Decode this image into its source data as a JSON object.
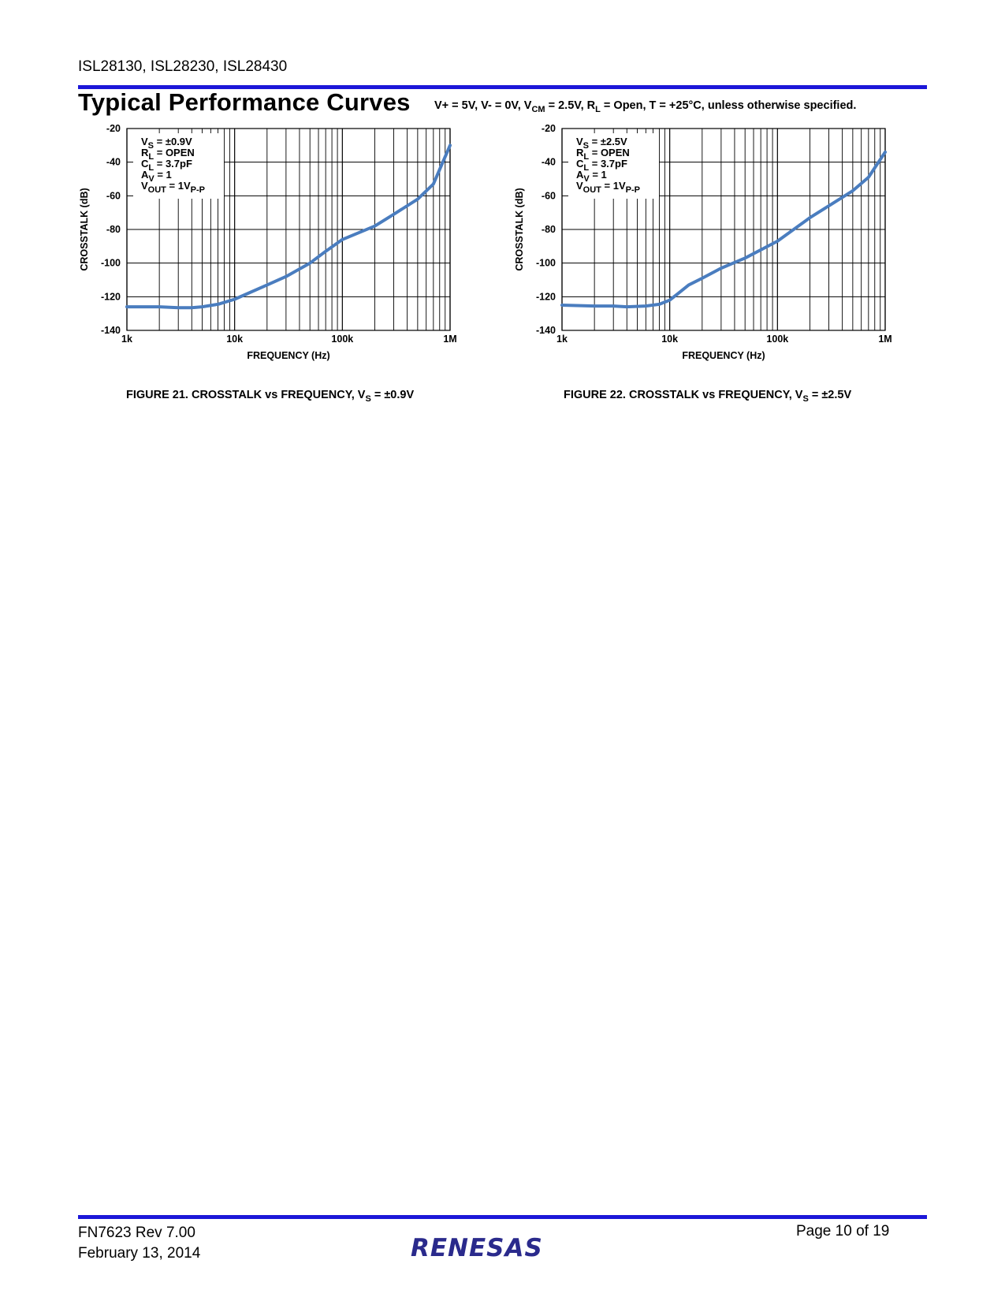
{
  "header": {
    "part_numbers": "ISL28130, ISL28230, ISL28430"
  },
  "section": {
    "title": "Typical Performance Curves",
    "conditions": {
      "vplus": "V+ = 5V, V- = 0V, V",
      "vcm_sub": "CM",
      "vcm_val": " = 2.5V, R",
      "rl_sub": "L",
      "rest": " = Open, T = +25°C, unless otherwise specified."
    }
  },
  "chart_data": [
    {
      "type": "line",
      "xscale": "log",
      "xlabel": "FREQUENCY (Hz)",
      "ylabel": "CROSSTALK (dB)",
      "xlim": [
        1000,
        1000000
      ],
      "ylim": [
        -140,
        -20
      ],
      "x_ticks": [
        "1k",
        "10k",
        "100k",
        "1M"
      ],
      "y_ticks": [
        "-20",
        "-40",
        "-60",
        "-80",
        "-100",
        "-120",
        "-140"
      ],
      "grid": true,
      "line_color": "#4a7dbf",
      "conditions": [
        {
          "main": "V",
          "sub": "S",
          "rest": " = ±0.9V"
        },
        {
          "main": "R",
          "sub": "L",
          "rest": " = OPEN"
        },
        {
          "main": "C",
          "sub": "L",
          "rest": " = 3.7pF"
        },
        {
          "main": "A",
          "sub": "V",
          "rest": " = 1"
        },
        {
          "main": "V",
          "sub": "OUT",
          "rest": " = 1V",
          "sub2": "P-P"
        }
      ],
      "series": [
        {
          "x": [
            1000,
            2000,
            3000,
            4000,
            5000,
            7000,
            10000,
            20000,
            30000,
            50000,
            70000,
            100000,
            200000,
            300000,
            500000,
            700000,
            1000000
          ],
          "y": [
            -126,
            -126,
            -126.5,
            -126.5,
            -126,
            -124.5,
            -121.5,
            -113,
            -108,
            -100,
            -93,
            -86,
            -78,
            -71,
            -62,
            -53,
            -30
          ]
        }
      ],
      "caption": {
        "text": "FIGURE 21.  CROSSTALK vs FREQUENCY, V",
        "sub": "S",
        "rest": " = ±0.9V"
      }
    },
    {
      "type": "line",
      "xscale": "log",
      "xlabel": "FREQUENCY (Hz)",
      "ylabel": "CROSSTALK (dB)",
      "xlim": [
        1000,
        1000000
      ],
      "ylim": [
        -140,
        -20
      ],
      "x_ticks": [
        "1k",
        "10k",
        "100k",
        "1M"
      ],
      "y_ticks": [
        "-20",
        "-40",
        "-60",
        "-80",
        "-100",
        "-120",
        "-140"
      ],
      "grid": true,
      "line_color": "#4a7dbf",
      "conditions": [
        {
          "main": "V",
          "sub": "S",
          "rest": " = ±2.5V"
        },
        {
          "main": "R",
          "sub": "L",
          "rest": " = OPEN"
        },
        {
          "main": "C",
          "sub": "L",
          "rest": " = 3.7pF"
        },
        {
          "main": "A",
          "sub": "V",
          "rest": " = 1"
        },
        {
          "main": "V",
          "sub": "OUT",
          "rest": " = 1V",
          "sub2": "P-P"
        }
      ],
      "series": [
        {
          "x": [
            1000,
            2000,
            3000,
            4000,
            6000,
            8000,
            10000,
            12000,
            15000,
            20000,
            30000,
            50000,
            100000,
            200000,
            300000,
            500000,
            700000,
            1000000
          ],
          "y": [
            -125,
            -125.5,
            -125.5,
            -126,
            -125.5,
            -124.5,
            -122,
            -118,
            -113,
            -109,
            -103,
            -97,
            -87,
            -73,
            -66,
            -57,
            -49,
            -34
          ]
        }
      ],
      "caption": {
        "text": "FIGURE 22.  CROSSTALK vs FREQUENCY, V",
        "sub": "S",
        "rest": " = ±2.5V"
      }
    }
  ],
  "footer": {
    "doc_id": "FN7623  Rev 7.00",
    "date": "February 13, 2014",
    "page": "Page 10 of 19",
    "logo_text": "RENESAS"
  }
}
